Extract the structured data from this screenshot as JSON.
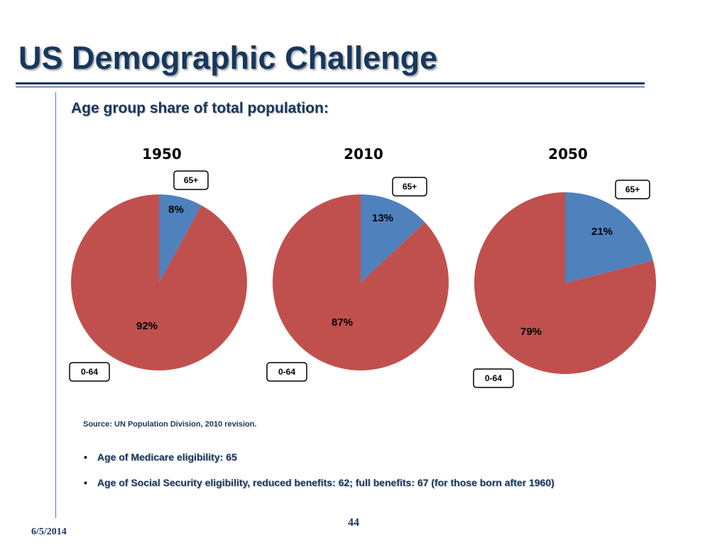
{
  "slide": {
    "title": "US Demographic Challenge",
    "subtitle": "Age group share of total population:",
    "source": "Source: UN Population Division, 2010 revision.",
    "bullets": [
      "Age of Medicare eligibility: 65",
      "Age of Social Security eligibility, reduced benefits: 62; full benefits: 67 (for those born after 1960)"
    ],
    "bullet_symbol": "•",
    "date": "6/5/2014",
    "page_number": "44"
  },
  "colors": {
    "title": "#17375e",
    "slice_65_plus": "#4f81bd",
    "slice_0_64": "#c0504d"
  },
  "chart_data": [
    {
      "type": "pie",
      "title": "1950",
      "categories": [
        "65+",
        "0-64"
      ],
      "values": [
        8,
        92
      ],
      "labels": [
        "8%",
        "92%"
      ],
      "colors": [
        "#4f81bd",
        "#c0504d"
      ]
    },
    {
      "type": "pie",
      "title": "2010",
      "categories": [
        "65+",
        "0-64"
      ],
      "values": [
        13,
        87
      ],
      "labels": [
        "13%",
        "87%"
      ],
      "colors": [
        "#4f81bd",
        "#c0504d"
      ]
    },
    {
      "type": "pie",
      "title": "2050",
      "categories": [
        "65+",
        "0-64"
      ],
      "values": [
        21,
        79
      ],
      "labels": [
        "21%",
        "79%"
      ],
      "colors": [
        "#4f81bd",
        "#c0504d"
      ]
    }
  ]
}
